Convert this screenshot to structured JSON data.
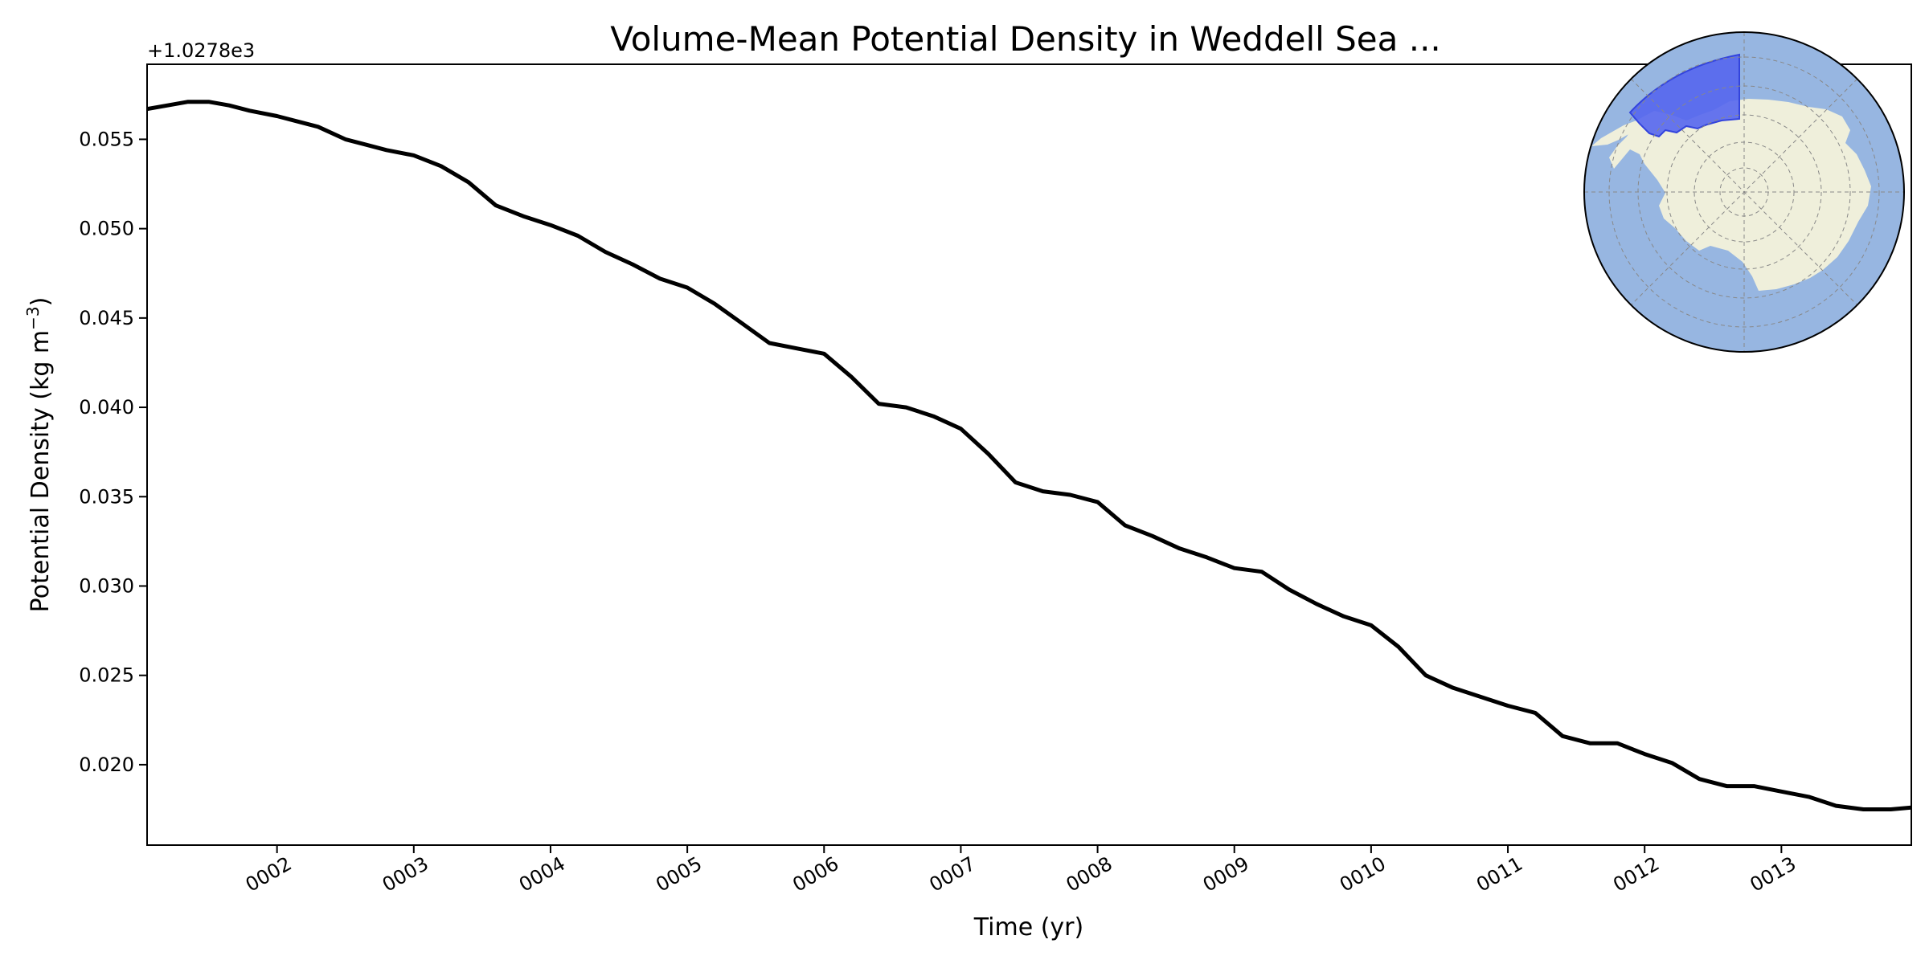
{
  "chart_data": {
    "type": "line",
    "title": "Volume-Mean Potential Density in Weddell Sea ...",
    "xlabel": "Time (yr)",
    "ylabel": "Potential Density (kg m",
    "ylabel_sup": "−3",
    "ylabel_end": ")",
    "y_offset_label": "+1.0278e3",
    "xlim": [
      0.05,
      12.95
    ],
    "ylim": [
      0.0155,
      0.0592
    ],
    "x_ticks": [
      1,
      2,
      3,
      4,
      5,
      6,
      7,
      8,
      9,
      10,
      11,
      12
    ],
    "x_tick_labels": [
      "0002",
      "0003",
      "0004",
      "0005",
      "0006",
      "0007",
      "0008",
      "0009",
      "0010",
      "0011",
      "0012",
      "0013"
    ],
    "y_ticks": [
      0.02,
      0.025,
      0.03,
      0.035,
      0.04,
      0.045,
      0.05,
      0.055
    ],
    "y_tick_labels": [
      "0.020",
      "0.025",
      "0.030",
      "0.035",
      "0.040",
      "0.045",
      "0.050",
      "0.055"
    ],
    "line_color": "#000000",
    "series": [
      {
        "x": [
          0.05,
          0.2,
          0.35,
          0.5,
          0.65,
          0.8,
          1.0,
          1.15,
          1.3,
          1.5,
          1.65,
          1.8,
          2.0,
          2.2,
          2.4,
          2.6,
          2.8,
          3.0,
          3.2,
          3.4,
          3.6,
          3.8,
          4.0,
          4.2,
          4.4,
          4.6,
          4.8,
          5.0,
          5.2,
          5.4,
          5.6,
          5.8,
          6.0,
          6.2,
          6.4,
          6.6,
          6.8,
          7.0,
          7.2,
          7.4,
          7.6,
          7.8,
          8.0,
          8.2,
          8.4,
          8.6,
          8.8,
          9.0,
          9.2,
          9.4,
          9.6,
          9.8,
          10.0,
          10.2,
          10.4,
          10.6,
          10.8,
          11.0,
          11.2,
          11.4,
          11.6,
          11.8,
          12.0,
          12.2,
          12.4,
          12.6,
          12.8,
          12.95
        ],
        "y": [
          0.0567,
          0.0569,
          0.0571,
          0.0571,
          0.0569,
          0.0566,
          0.0563,
          0.056,
          0.0557,
          0.055,
          0.0547,
          0.0544,
          0.0541,
          0.0535,
          0.0526,
          0.0513,
          0.0507,
          0.0502,
          0.0496,
          0.0487,
          0.048,
          0.0472,
          0.0467,
          0.0458,
          0.0447,
          0.0436,
          0.0433,
          0.043,
          0.0417,
          0.0402,
          0.04,
          0.0395,
          0.0388,
          0.0374,
          0.0358,
          0.0353,
          0.0351,
          0.0347,
          0.0334,
          0.0328,
          0.0321,
          0.0316,
          0.031,
          0.0308,
          0.0298,
          0.029,
          0.0283,
          0.0278,
          0.0266,
          0.025,
          0.0243,
          0.0238,
          0.0233,
          0.0229,
          0.0216,
          0.0212,
          0.0212,
          0.0206,
          0.0201,
          0.0192,
          0.0188,
          0.0188,
          0.0185,
          0.0182,
          0.0177,
          0.0175,
          0.0175,
          0.0176
        ]
      }
    ]
  },
  "inset_map": {
    "ocean_color": "#97b6e1",
    "land_color": "#efefdb",
    "region_color": "#5566ee",
    "region_edge_color": "#3344dd",
    "grid_color": "#888888",
    "icon": "antarctica-polar-map"
  }
}
